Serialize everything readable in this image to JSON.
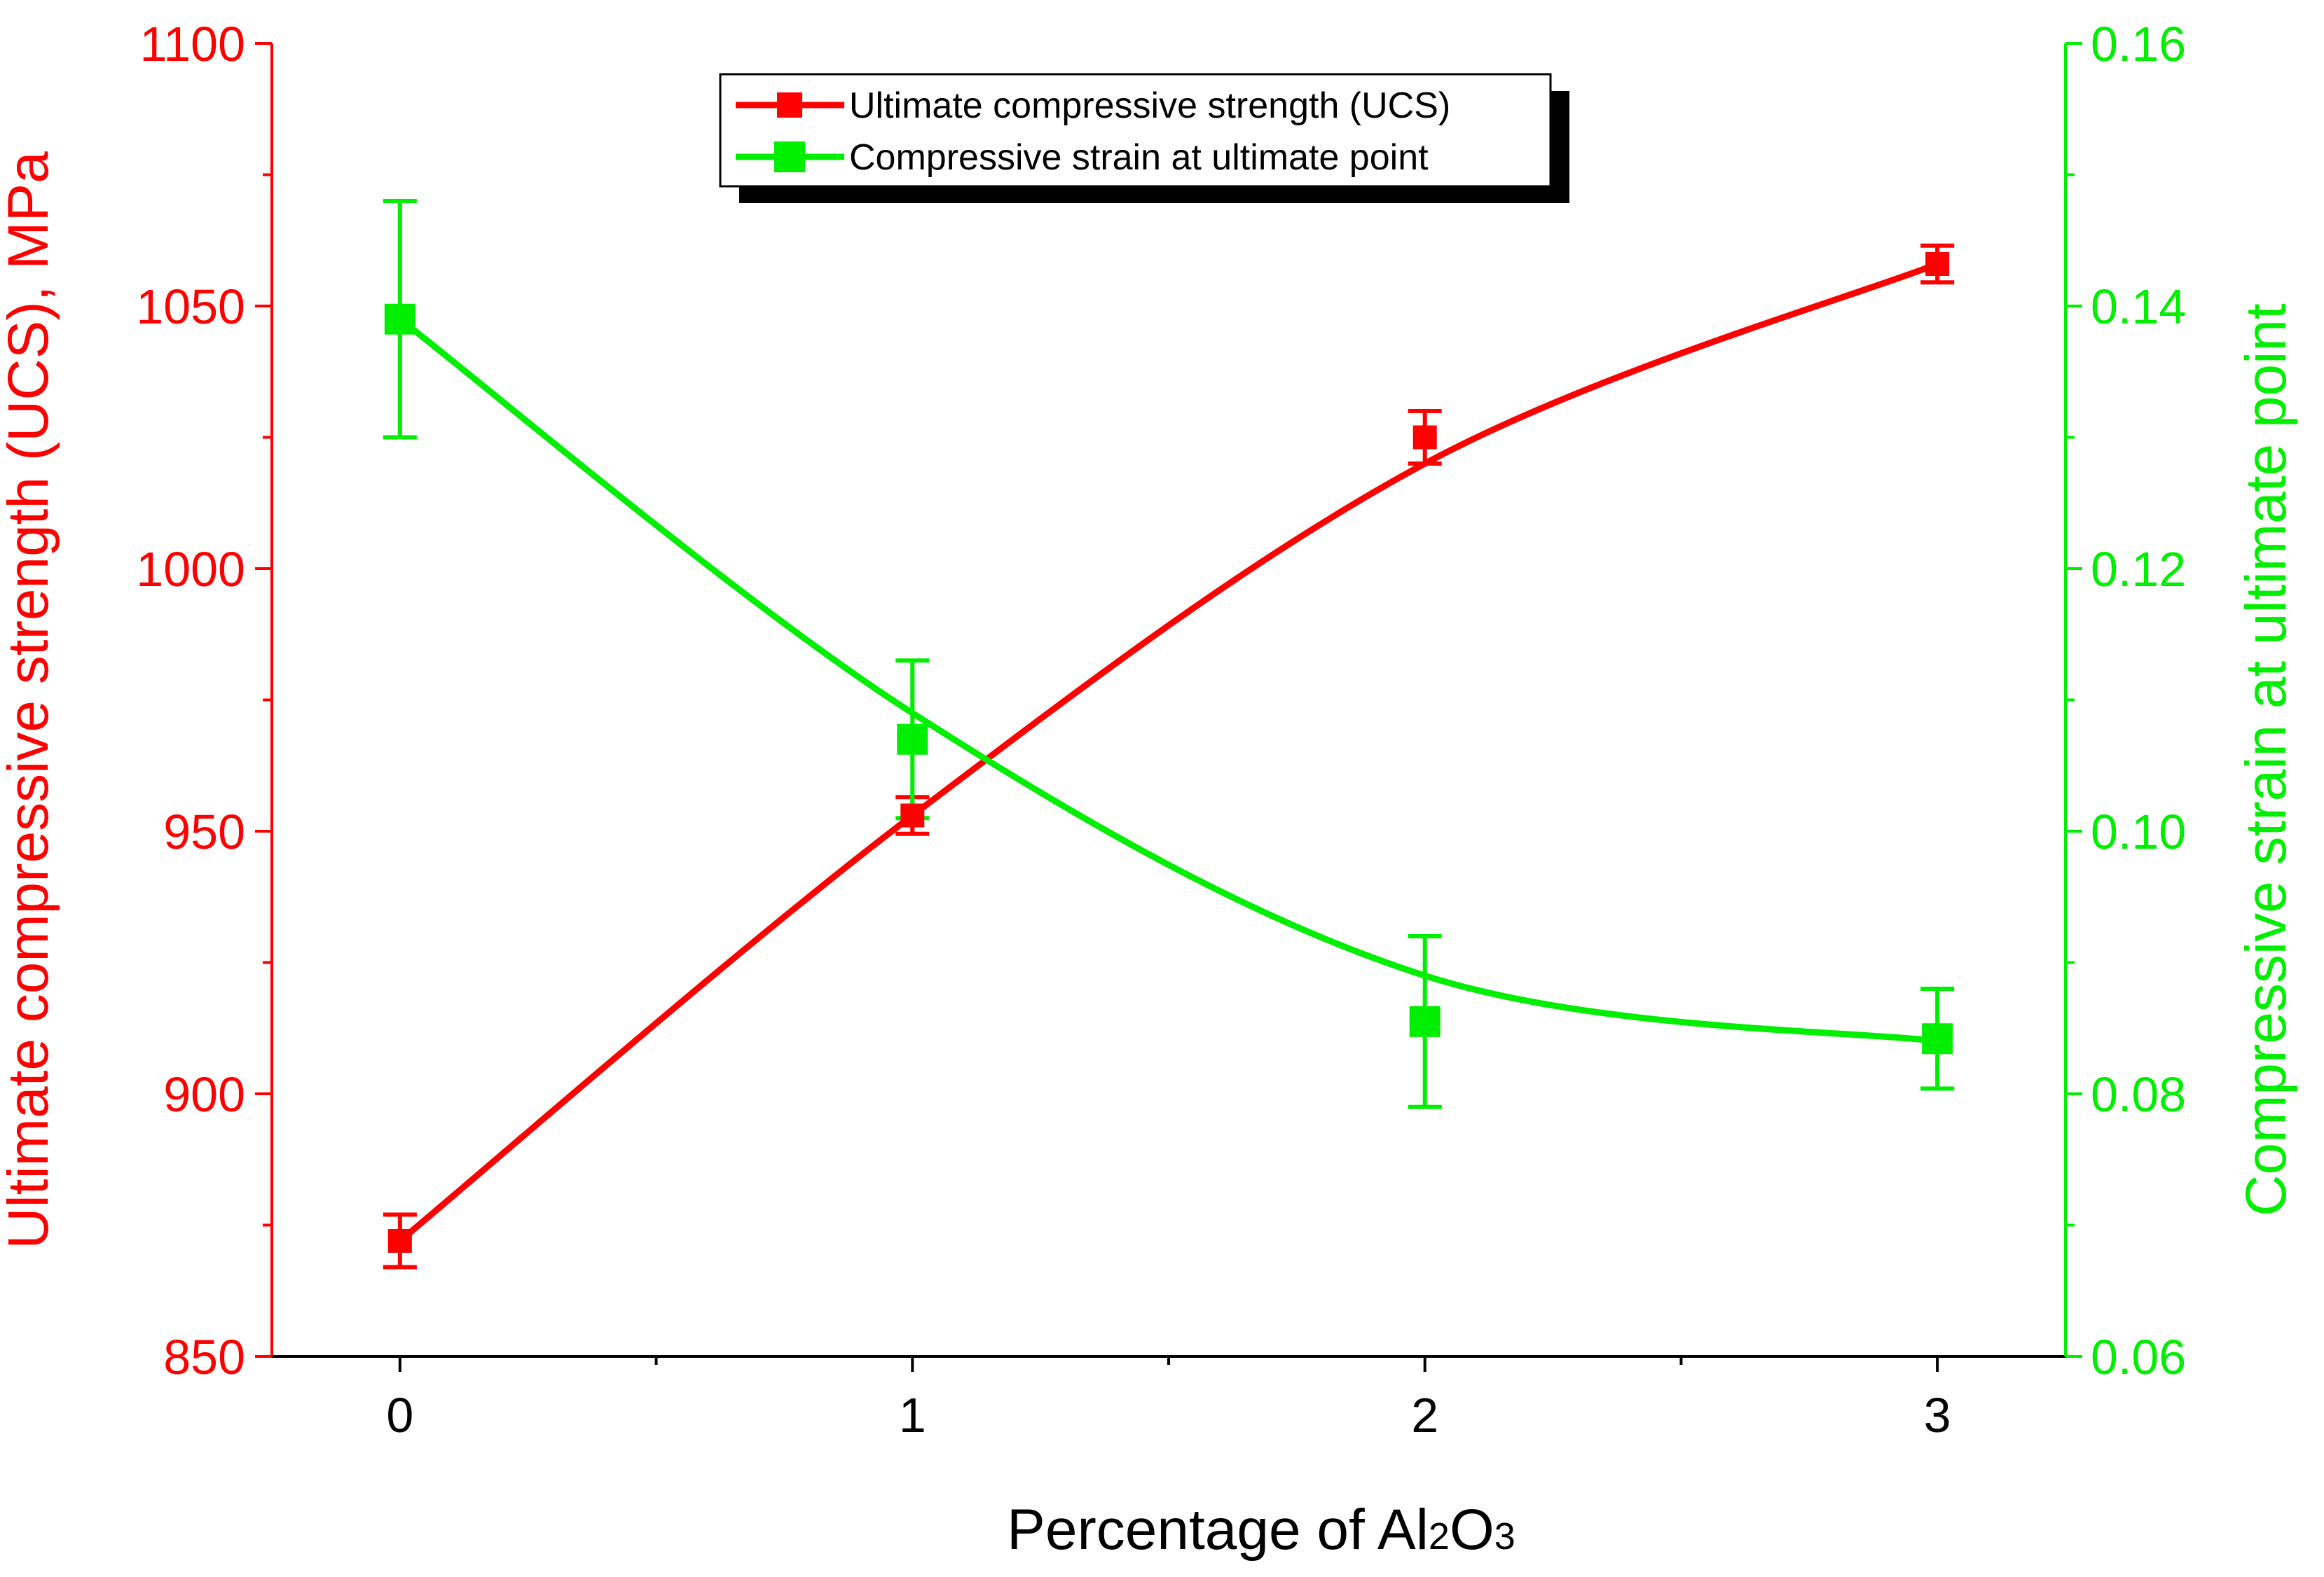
{
  "chart_data": {
    "type": "line",
    "title": "",
    "xlabel_prefix": "Percentage of Al",
    "xlabel_sub1": "2",
    "xlabel_mid": "O",
    "xlabel_sub2": "3",
    "x": [
      0,
      1,
      2,
      3
    ],
    "xlim": [
      -0.25,
      3.25
    ],
    "xticks": [
      "0",
      "1",
      "2",
      "3"
    ],
    "series": [
      {
        "name": "Ultimate compressive strength (UCS)",
        "axis": "left",
        "color": "#ff0000",
        "values": [
          872,
          953,
          1025,
          1058
        ],
        "errors": [
          5,
          3.5,
          5,
          3.5
        ],
        "fit": [
          872,
          953,
          1020,
          1058
        ]
      },
      {
        "name": "Compressive strain at ultimate point",
        "axis": "right",
        "color": "#00ee00",
        "values": [
          0.139,
          0.107,
          0.0855,
          0.0842
        ],
        "errors": [
          0.009,
          0.006,
          0.0065,
          0.0038
        ],
        "fit": [
          0.139,
          0.109,
          0.089,
          0.084
        ]
      }
    ],
    "left_axis": {
      "label": "Ultimate compressive strength (UCS), MPa",
      "ylim": [
        850,
        1100
      ],
      "ticks": [
        "850",
        "900",
        "950",
        "1000",
        "1050",
        "1100"
      ],
      "color": "#ff0000"
    },
    "right_axis": {
      "label": "Compressive strain at ultimate point",
      "ylim": [
        0.06,
        0.16
      ],
      "ticks": [
        "0.06",
        "0.08",
        "0.10",
        "0.12",
        "0.14",
        "0.16"
      ],
      "color": "#00ee00"
    },
    "legend_position": "top-center"
  }
}
